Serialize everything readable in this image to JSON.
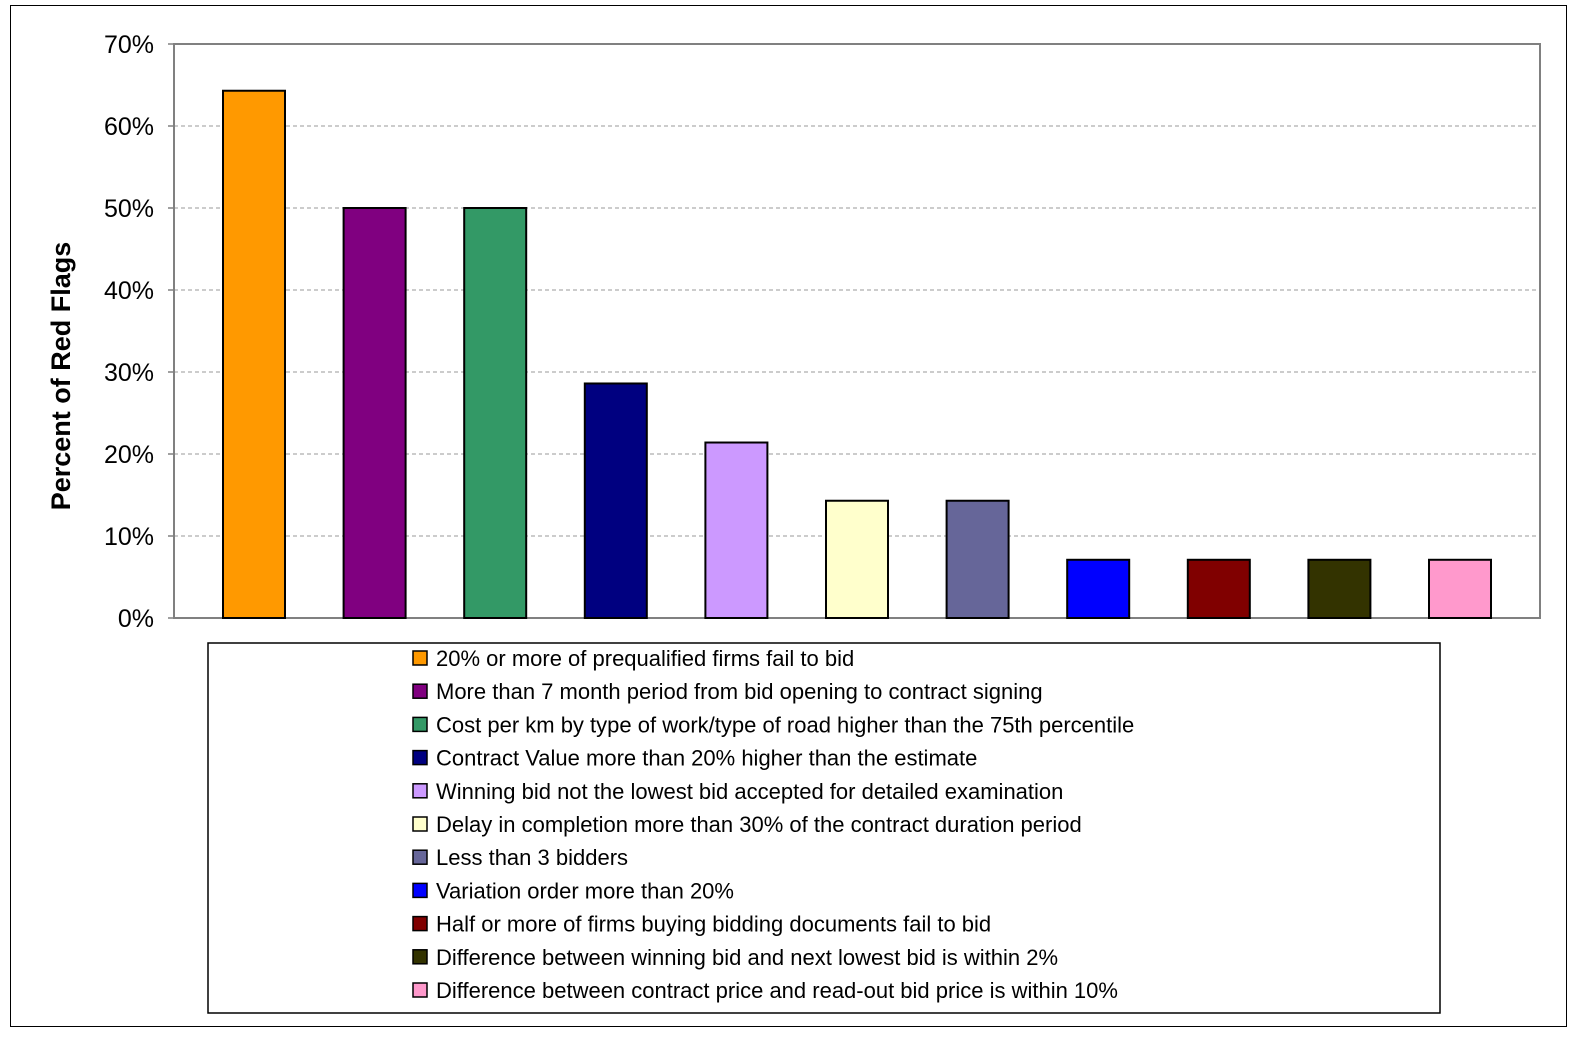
{
  "chart_data": {
    "type": "bar",
    "title": "",
    "xlabel": "",
    "ylabel": "Percent of Red Flags",
    "ylim": [
      0,
      70
    ],
    "yticks": [
      "0%",
      "10%",
      "20%",
      "30%",
      "40%",
      "50%",
      "60%",
      "70%"
    ],
    "grid": true,
    "legend_position": "bottom",
    "categories": [
      "20% or more of prequalified firms fail to bid",
      "More than 7 month period from bid opening to contract signing",
      "Cost per km by type of work/type of road higher than the 75th percentile",
      "Contract Value more than 20% higher than the estimate",
      "Winning bid not the lowest bid accepted for detailed examination",
      "Delay in completion more than 30% of the contract duration period",
      "Less than 3 bidders",
      "Variation order more than 20%",
      "Half or more of firms buying bidding documents fail to bid",
      "Difference between winning bid and next lowest bid is within 2%",
      "Difference between contract price and read-out bid price is within 10%"
    ],
    "values": [
      64.3,
      50.0,
      50.0,
      28.6,
      21.4,
      14.3,
      14.3,
      7.1,
      7.1,
      7.1,
      7.1
    ],
    "colors": [
      "#FF9900",
      "#800080",
      "#339966",
      "#000080",
      "#CC99FF",
      "#FFFFCC",
      "#666699",
      "#0000FF",
      "#800000",
      "#333300",
      "#FF99CC"
    ]
  }
}
